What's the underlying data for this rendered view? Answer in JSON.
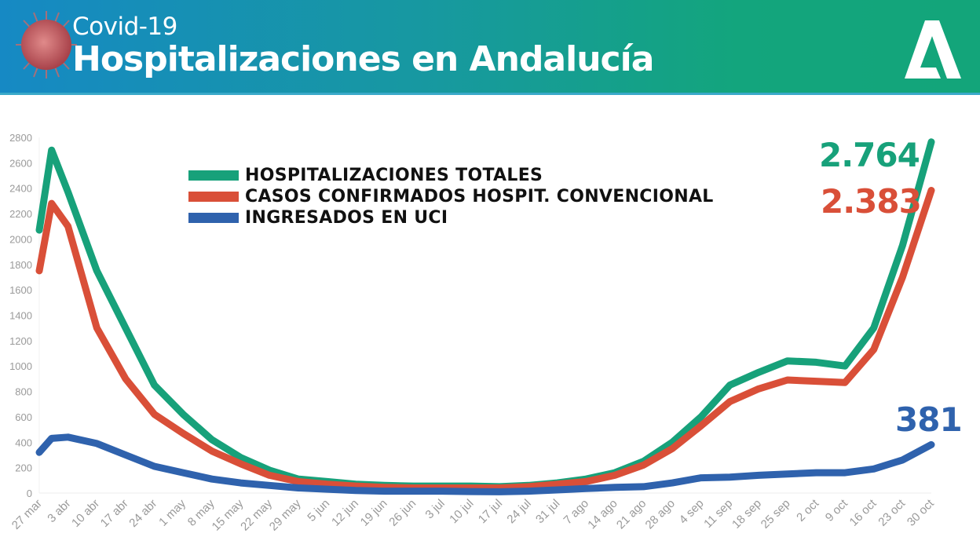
{
  "header": {
    "subtitle": "Covid-19",
    "title": "Hospitalizaciones en Andalucía",
    "logo_text": "A",
    "virus_icon": "coronavirus-image"
  },
  "chart_data": {
    "type": "line",
    "title": "",
    "xlabel": "",
    "ylabel": "",
    "ylim": [
      0,
      2800
    ],
    "yticks": [
      "0",
      "200",
      "400",
      "600",
      "800",
      "1000",
      "1200",
      "1400",
      "1600",
      "1800",
      "2000",
      "2200",
      "2400",
      "2600",
      "2800"
    ],
    "xticks": [
      "27 mar",
      "3 abr",
      "10 abr",
      "17 abr",
      "24 abr",
      "1 may",
      "8 may",
      "15 may",
      "22 may",
      "29 may",
      "5 jun",
      "12 jun",
      "19 jun",
      "26 jun",
      "3 jul",
      "10 jul",
      "17 jul",
      "24 jul",
      "31 jul",
      "7 ago",
      "14 ago",
      "21 ago",
      "28 ago",
      "4 sep",
      "11 sep",
      "18 sep",
      "25 sep",
      "2 oct",
      "9 oct",
      "16 oct",
      "23 oct",
      "30 oct"
    ],
    "grid": false,
    "legend": "top-left",
    "x": [
      "27 mar",
      "30 mar",
      "3 abr",
      "10 abr",
      "17 abr",
      "24 abr",
      "1 may",
      "8 may",
      "15 may",
      "22 may",
      "29 may",
      "5 jun",
      "12 jun",
      "19 jun",
      "26 jun",
      "3 jul",
      "10 jul",
      "17 jul",
      "24 jul",
      "31 jul",
      "7 ago",
      "14 ago",
      "21 ago",
      "28 ago",
      "4 sep",
      "11 sep",
      "18 sep",
      "25 sep",
      "2 oct",
      "9 oct",
      "16 oct",
      "23 oct",
      "30 oct"
    ],
    "series": [
      {
        "name": "HOSPITALIZACIONES TOTALES",
        "color": "#17a17a",
        "end_label": "2.764",
        "values": [
          2070,
          2700,
          2370,
          1750,
          1300,
          850,
          620,
          420,
          280,
          180,
          110,
          90,
          70,
          60,
          55,
          55,
          55,
          50,
          60,
          80,
          110,
          160,
          250,
          400,
          600,
          850,
          950,
          1040,
          1030,
          1000,
          1300,
          1950,
          2764
        ]
      },
      {
        "name": "CASOS CONFIRMADOS HOSPIT. CONVENCIONAL",
        "color": "#d94f38",
        "end_label": "2.383",
        "values": [
          1750,
          2280,
          2100,
          1300,
          900,
          620,
          470,
          330,
          230,
          140,
          90,
          70,
          55,
          45,
          40,
          40,
          40,
          40,
          50,
          70,
          90,
          140,
          220,
          350,
          530,
          720,
          820,
          890,
          880,
          870,
          1130,
          1700,
          2383
        ]
      },
      {
        "name": "INGRESADOS EN UCI",
        "color": "#2f62ad",
        "end_label": "381",
        "values": [
          320,
          430,
          440,
          390,
          300,
          210,
          160,
          110,
          80,
          60,
          40,
          30,
          20,
          15,
          15,
          15,
          12,
          10,
          15,
          25,
          35,
          45,
          50,
          80,
          120,
          125,
          140,
          150,
          160,
          160,
          190,
          260,
          381
        ]
      }
    ]
  }
}
